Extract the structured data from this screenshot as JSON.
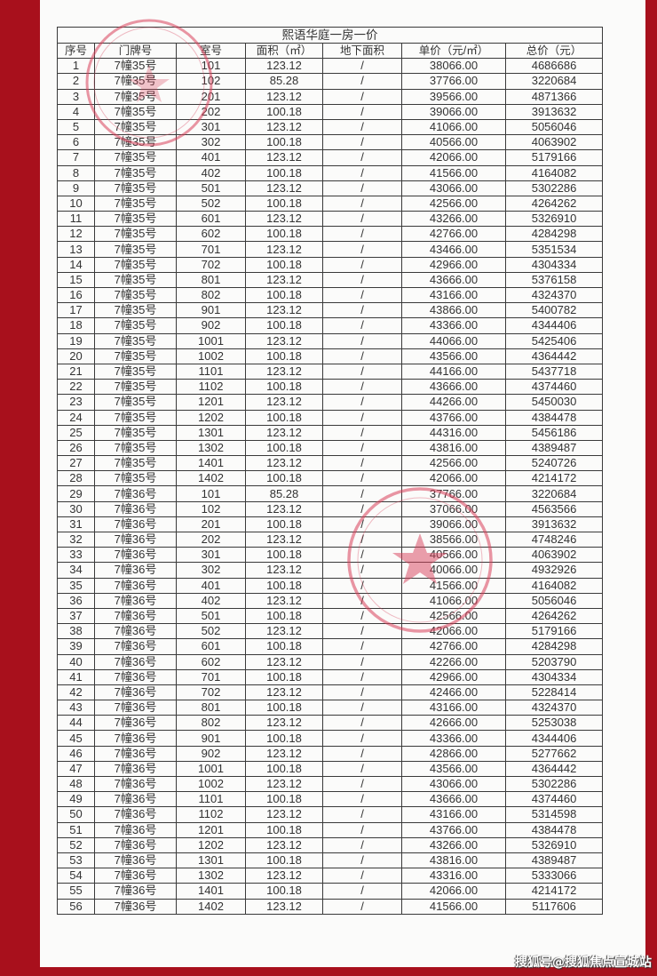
{
  "document": {
    "title": "熙语华庭一房一价",
    "headers": [
      "序号",
      "门牌号",
      "室号",
      "面积（㎡）",
      "地下面积",
      "单价（元/㎡）",
      "总价（元）"
    ],
    "rows": [
      [
        "1",
        "7幢35号",
        "101",
        "123.12",
        "/",
        "38066.00",
        "4686686"
      ],
      [
        "2",
        "7幢35号",
        "102",
        "85.28",
        "/",
        "37766.00",
        "3220684"
      ],
      [
        "3",
        "7幢35号",
        "201",
        "123.12",
        "/",
        "39566.00",
        "4871366"
      ],
      [
        "4",
        "7幢35号",
        "202",
        "100.18",
        "/",
        "39066.00",
        "3913632"
      ],
      [
        "5",
        "7幢35号",
        "301",
        "123.12",
        "/",
        "41066.00",
        "5056046"
      ],
      [
        "6",
        "7幢35号",
        "302",
        "100.18",
        "/",
        "40566.00",
        "4063902"
      ],
      [
        "7",
        "7幢35号",
        "401",
        "123.12",
        "/",
        "42066.00",
        "5179166"
      ],
      [
        "8",
        "7幢35号",
        "402",
        "100.18",
        "/",
        "41566.00",
        "4164082"
      ],
      [
        "9",
        "7幢35号",
        "501",
        "123.12",
        "/",
        "43066.00",
        "5302286"
      ],
      [
        "10",
        "7幢35号",
        "502",
        "100.18",
        "/",
        "42566.00",
        "4264262"
      ],
      [
        "11",
        "7幢35号",
        "601",
        "123.12",
        "/",
        "43266.00",
        "5326910"
      ],
      [
        "12",
        "7幢35号",
        "602",
        "100.18",
        "/",
        "42766.00",
        "4284298"
      ],
      [
        "13",
        "7幢35号",
        "701",
        "123.12",
        "/",
        "43466.00",
        "5351534"
      ],
      [
        "14",
        "7幢35号",
        "702",
        "100.18",
        "/",
        "42966.00",
        "4304334"
      ],
      [
        "15",
        "7幢35号",
        "801",
        "123.12",
        "/",
        "43666.00",
        "5376158"
      ],
      [
        "16",
        "7幢35号",
        "802",
        "100.18",
        "/",
        "43166.00",
        "4324370"
      ],
      [
        "17",
        "7幢35号",
        "901",
        "123.12",
        "/",
        "43866.00",
        "5400782"
      ],
      [
        "18",
        "7幢35号",
        "902",
        "100.18",
        "/",
        "43366.00",
        "4344406"
      ],
      [
        "19",
        "7幢35号",
        "1001",
        "123.12",
        "/",
        "44066.00",
        "5425406"
      ],
      [
        "20",
        "7幢35号",
        "1002",
        "100.18",
        "/",
        "43566.00",
        "4364442"
      ],
      [
        "21",
        "7幢35号",
        "1101",
        "123.12",
        "/",
        "44166.00",
        "5437718"
      ],
      [
        "22",
        "7幢35号",
        "1102",
        "100.18",
        "/",
        "43666.00",
        "4374460"
      ],
      [
        "23",
        "7幢35号",
        "1201",
        "123.12",
        "/",
        "44266.00",
        "5450030"
      ],
      [
        "24",
        "7幢35号",
        "1202",
        "100.18",
        "/",
        "43766.00",
        "4384478"
      ],
      [
        "25",
        "7幢35号",
        "1301",
        "123.12",
        "/",
        "44316.00",
        "5456186"
      ],
      [
        "26",
        "7幢35号",
        "1302",
        "100.18",
        "/",
        "43816.00",
        "4389487"
      ],
      [
        "27",
        "7幢35号",
        "1401",
        "123.12",
        "/",
        "42566.00",
        "5240726"
      ],
      [
        "28",
        "7幢35号",
        "1402",
        "100.18",
        "/",
        "42066.00",
        "4214172"
      ],
      [
        "29",
        "7幢36号",
        "101",
        "85.28",
        "/",
        "37766.00",
        "3220684"
      ],
      [
        "30",
        "7幢36号",
        "102",
        "123.12",
        "/",
        "37066.00",
        "4563566"
      ],
      [
        "31",
        "7幢36号",
        "201",
        "100.18",
        "/",
        "39066.00",
        "3913632"
      ],
      [
        "32",
        "7幢36号",
        "202",
        "123.12",
        "/",
        "38566.00",
        "4748246"
      ],
      [
        "33",
        "7幢36号",
        "301",
        "100.18",
        "/",
        "40566.00",
        "4063902"
      ],
      [
        "34",
        "7幢36号",
        "302",
        "123.12",
        "/",
        "40066.00",
        "4932926"
      ],
      [
        "35",
        "7幢36号",
        "401",
        "100.18",
        "/",
        "41566.00",
        "4164082"
      ],
      [
        "36",
        "7幢36号",
        "402",
        "123.12",
        "/",
        "41066.00",
        "5056046"
      ],
      [
        "37",
        "7幢36号",
        "501",
        "100.18",
        "/",
        "42566.00",
        "4264262"
      ],
      [
        "38",
        "7幢36号",
        "502",
        "123.12",
        "/",
        "42066.00",
        "5179166"
      ],
      [
        "39",
        "7幢36号",
        "601",
        "100.18",
        "/",
        "42766.00",
        "4284298"
      ],
      [
        "40",
        "7幢36号",
        "602",
        "123.12",
        "/",
        "42266.00",
        "5203790"
      ],
      [
        "41",
        "7幢36号",
        "701",
        "100.18",
        "/",
        "42966.00",
        "4304334"
      ],
      [
        "42",
        "7幢36号",
        "702",
        "123.12",
        "/",
        "42466.00",
        "5228414"
      ],
      [
        "43",
        "7幢36号",
        "801",
        "100.18",
        "/",
        "43166.00",
        "4324370"
      ],
      [
        "44",
        "7幢36号",
        "802",
        "123.12",
        "/",
        "42666.00",
        "5253038"
      ],
      [
        "45",
        "7幢36号",
        "901",
        "100.18",
        "/",
        "43366.00",
        "4344406"
      ],
      [
        "46",
        "7幢36号",
        "902",
        "123.12",
        "/",
        "42866.00",
        "5277662"
      ],
      [
        "47",
        "7幢36号",
        "1001",
        "100.18",
        "/",
        "43566.00",
        "4364442"
      ],
      [
        "48",
        "7幢36号",
        "1002",
        "123.12",
        "/",
        "43066.00",
        "5302286"
      ],
      [
        "49",
        "7幢36号",
        "1101",
        "100.18",
        "/",
        "43666.00",
        "4374460"
      ],
      [
        "50",
        "7幢36号",
        "1102",
        "123.12",
        "/",
        "43166.00",
        "5314598"
      ],
      [
        "51",
        "7幢36号",
        "1201",
        "100.18",
        "/",
        "43766.00",
        "4384478"
      ],
      [
        "52",
        "7幢36号",
        "1202",
        "123.12",
        "/",
        "43266.00",
        "5326910"
      ],
      [
        "53",
        "7幢36号",
        "1301",
        "100.18",
        "/",
        "43816.00",
        "4389487"
      ],
      [
        "54",
        "7幢36号",
        "1302",
        "123.12",
        "/",
        "43316.00",
        "5333066"
      ],
      [
        "55",
        "7幢36号",
        "1401",
        "100.18",
        "/",
        "42066.00",
        "4214172"
      ],
      [
        "56",
        "7幢36号",
        "1402",
        "123.12",
        "/",
        "41566.00",
        "5117606"
      ]
    ]
  },
  "watermark": "搜狐号@搜狐焦点宣城站",
  "colors": {
    "border_background": "#a8101c",
    "stamp": "#d8405a"
  }
}
